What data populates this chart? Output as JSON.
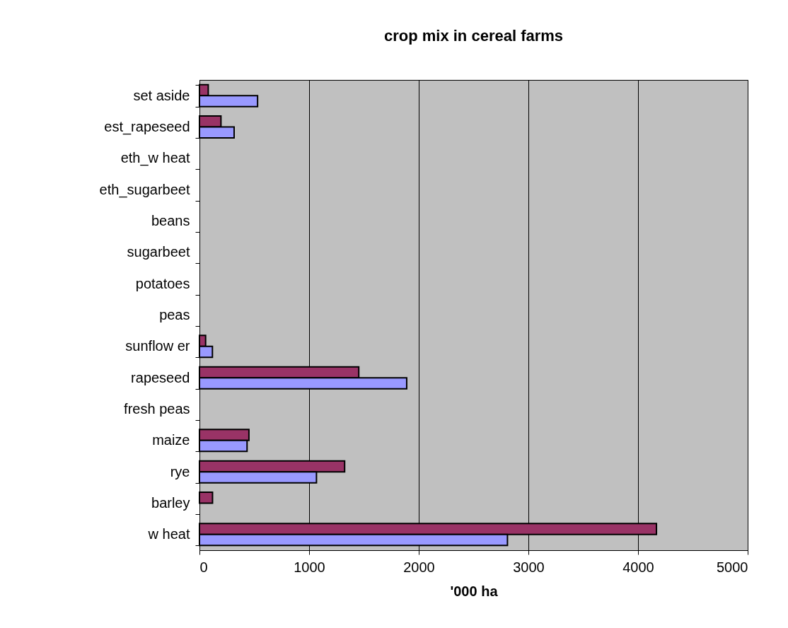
{
  "chart_data": {
    "type": "bar",
    "orientation": "horizontal",
    "title": "crop mix in cereal farms",
    "xlabel": "'000 ha",
    "categories": [
      "set aside",
      "est_rapeseed",
      "eth_w heat",
      "eth_sugarbeet",
      "beans",
      "sugarbeet",
      "potatoes",
      "peas",
      "sunflow er",
      "rapeseed",
      "fresh peas",
      "maize",
      "rye",
      "barley",
      "w heat"
    ],
    "series": [
      {
        "color": "#993366",
        "values": [
          80,
          196,
          null,
          null,
          null,
          null,
          null,
          null,
          56,
          1453,
          null,
          451,
          1324,
          119,
          4168
        ]
      },
      {
        "color": "#9999ff",
        "values": [
          530,
          316,
          null,
          null,
          null,
          null,
          null,
          null,
          118,
          1890,
          null,
          434,
          1067,
          null,
          2809
        ]
      }
    ],
    "xlim": [
      0,
      5000
    ],
    "xticks": [
      0,
      1000,
      2000,
      3000,
      4000,
      5000
    ],
    "grid": "x",
    "legend": false
  }
}
